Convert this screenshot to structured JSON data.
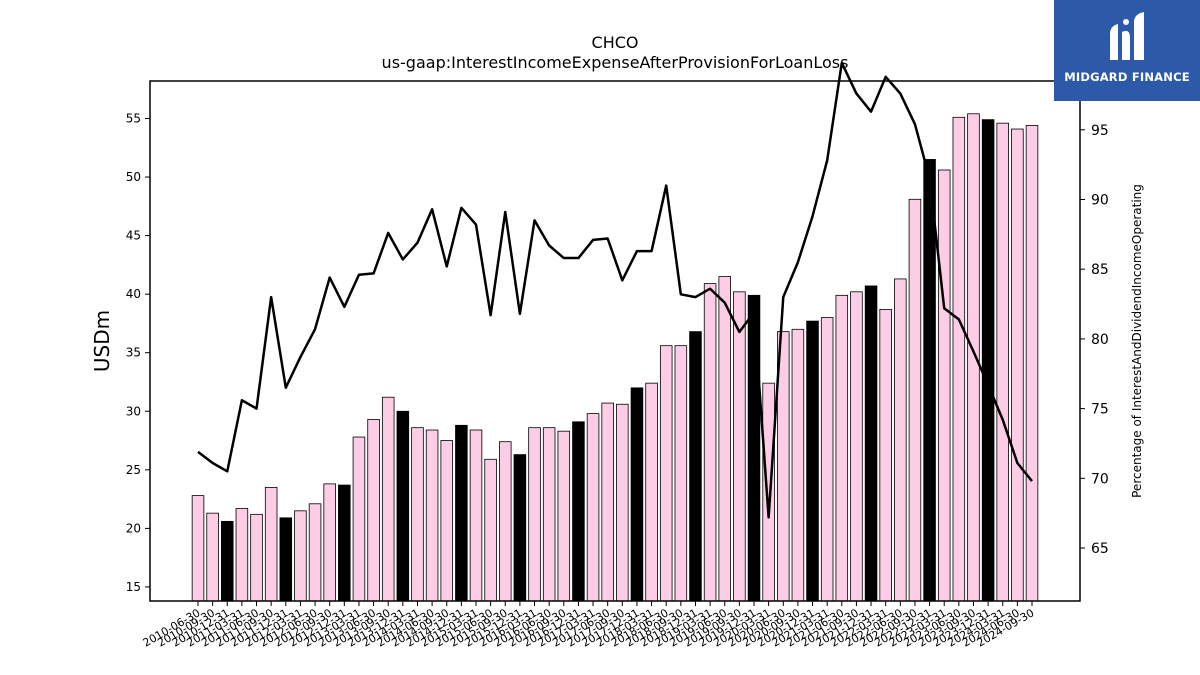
{
  "chart_data": {
    "type": "bar",
    "title": "CHCO",
    "subtitle": "us-gaap:InterestIncomeExpenseAfterProvisionForLoanLoss",
    "ylabel": "USDm",
    "y2label": "Percentage of InterestAndDividendIncomeOperating",
    "ylim": [
      13.8,
      58.2
    ],
    "y2lim": [
      61.2,
      98.5
    ],
    "yticks": [
      15,
      20,
      25,
      30,
      35,
      40,
      45,
      50,
      55
    ],
    "y2ticks": [
      65,
      70,
      75,
      80,
      85,
      90,
      95
    ],
    "grid": false,
    "categories": [
      "2010-06-30",
      "2010-09-30",
      "2010-12-31",
      "2011-03-31",
      "2011-06-30",
      "2011-09-30",
      "2011-12-31",
      "2012-03-31",
      "2012-06-30",
      "2012-09-30",
      "2012-12-31",
      "2013-03-31",
      "2013-06-30",
      "2013-09-30",
      "2013-12-31",
      "2014-03-31",
      "2014-06-30",
      "2014-09-30",
      "2014-12-31",
      "2015-03-31",
      "2015-06-30",
      "2015-09-30",
      "2015-12-31",
      "2016-03-31",
      "2016-06-30",
      "2016-09-30",
      "2016-12-31",
      "2017-03-31",
      "2017-06-30",
      "2017-09-30",
      "2017-12-31",
      "2018-03-31",
      "2018-06-30",
      "2018-09-30",
      "2018-12-31",
      "2019-03-31",
      "2019-06-30",
      "2019-09-30",
      "2019-12-31",
      "2020-03-31",
      "2020-06-30",
      "2020-09-30",
      "2020-12-31",
      "2021-03-31",
      "2021-06-30",
      "2021-09-30",
      "2021-12-31",
      "2022-03-31",
      "2022-06-30",
      "2022-09-30",
      "2022-12-31",
      "2023-03-31",
      "2023-06-30",
      "2023-09-30",
      "2023-12-31",
      "2024-03-31",
      "2024-06-30",
      "2024-09-30"
    ],
    "series": [
      {
        "type": "bar",
        "values": [
          22.8,
          21.3,
          20.6,
          21.7,
          21.2,
          23.5,
          20.9,
          21.5,
          22.1,
          23.8,
          23.7,
          27.8,
          29.3,
          31.2,
          30.0,
          28.6,
          28.4,
          27.5,
          28.8,
          28.4,
          25.9,
          27.4,
          26.3,
          28.6,
          28.6,
          28.3,
          29.1,
          29.8,
          30.7,
          30.6,
          32.0,
          32.4,
          35.6,
          35.6,
          36.8,
          40.9,
          41.5,
          40.2,
          39.9,
          32.4,
          36.8,
          37.0,
          37.7,
          38.0,
          39.9,
          40.2,
          40.7,
          38.7,
          41.3,
          48.1,
          51.5,
          50.6,
          55.1,
          55.4,
          54.9,
          54.6,
          54.1,
          54.4
        ],
        "highlight": [
          false,
          false,
          true,
          false,
          false,
          false,
          true,
          false,
          false,
          false,
          true,
          false,
          false,
          false,
          true,
          false,
          false,
          false,
          true,
          false,
          false,
          false,
          true,
          false,
          false,
          false,
          true,
          false,
          false,
          false,
          true,
          false,
          false,
          false,
          true,
          false,
          false,
          false,
          true,
          false,
          false,
          false,
          true,
          false,
          false,
          false,
          true,
          false,
          false,
          false,
          true,
          false,
          false,
          false,
          true,
          false,
          false,
          false
        ]
      },
      {
        "type": "line",
        "axis": "right",
        "values": [
          71.9,
          71.1,
          70.5,
          75.6,
          75.0,
          83.0,
          76.5,
          78.7,
          80.7,
          84.4,
          82.3,
          84.6,
          84.7,
          87.6,
          85.7,
          86.9,
          89.3,
          85.2,
          89.4,
          88.2,
          81.7,
          89.1,
          81.8,
          88.5,
          86.7,
          85.8,
          85.8,
          87.1,
          87.2,
          84.2,
          86.3,
          86.3,
          91.0,
          83.2,
          83.0,
          83.6,
          82.6,
          80.5,
          81.9,
          67.2,
          83.0,
          85.5,
          88.8,
          92.8,
          99.8,
          97.6,
          96.3,
          98.8,
          97.6,
          95.4,
          91.5,
          82.2,
          81.4,
          79.1,
          76.7,
          74.2,
          71.1,
          69.8
        ]
      }
    ]
  },
  "colors": {
    "bar": "#fccde5",
    "bar_highlight": "#000000",
    "line": "#000000"
  },
  "logo": {
    "name": "MIDGARD FINANCE",
    "icon": "midgard-logo-icon"
  }
}
